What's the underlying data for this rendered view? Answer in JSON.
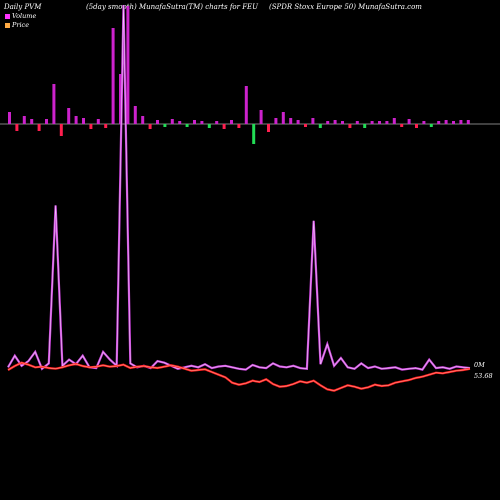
{
  "header": {
    "left": "Daily PVM",
    "center": "(5day smooth) MunafaSutra(TM) charts for FEU",
    "right": "(SPDR Stoxx Europe   50) MunafaSutra.com"
  },
  "legend": [
    {
      "label": "Volume",
      "color": "#ff33ff"
    },
    {
      "label": "Price",
      "color": "#ffaa44"
    }
  ],
  "colors": {
    "up": "#cc22cc",
    "down": "#ff1f4f",
    "green": "#22dd55",
    "volume_line": "#cc44dd",
    "price_line": "#ff2020",
    "axis": "#aaaaaa"
  },
  "chart_data": {
    "type": "line",
    "x": [
      1,
      2,
      3,
      4,
      5,
      6,
      7,
      8,
      9,
      10,
      11,
      12,
      13,
      14,
      15,
      16,
      17,
      18,
      19,
      20,
      21,
      22,
      23,
      24,
      25,
      26,
      27,
      28,
      29,
      30,
      31,
      32,
      33,
      34,
      35,
      36,
      37,
      38,
      39,
      40,
      41,
      42,
      43,
      44,
      45,
      46,
      47,
      48,
      49,
      50,
      51,
      52,
      53,
      54,
      55,
      56,
      57,
      58,
      59,
      60,
      61,
      62,
      63,
      64,
      65,
      66,
      67,
      68,
      69
    ],
    "series": [
      {
        "name": "Volume",
        "values": [
          10,
          25,
          12,
          18,
          30,
          8,
          15,
          220,
          12,
          20,
          14,
          25,
          10,
          9,
          30,
          20,
          12,
          480,
          15,
          10,
          12,
          9,
          18,
          16,
          12,
          8,
          10,
          12,
          10,
          14,
          9,
          11,
          12,
          10,
          8,
          7,
          13,
          10,
          9,
          15,
          11,
          10,
          12,
          9,
          8,
          200,
          14,
          40,
          12,
          22,
          10,
          8,
          15,
          9,
          11,
          8,
          9,
          10,
          7,
          8,
          9,
          7,
          20,
          9,
          10,
          8,
          11,
          10,
          9
        ]
      },
      {
        "name": "Price",
        "values": [
          53.5,
          54.1,
          54.6,
          54.3,
          53.9,
          54.0,
          53.8,
          53.7,
          53.9,
          54.2,
          54.4,
          54.1,
          53.9,
          54.0,
          54.2,
          54.0,
          54.1,
          54.3,
          53.8,
          54.0,
          54.1,
          53.9,
          53.8,
          54.0,
          54.2,
          54.0,
          53.7,
          53.4,
          53.5,
          53.6,
          53.2,
          52.8,
          52.4,
          51.6,
          51.3,
          51.5,
          51.9,
          51.7,
          52.1,
          51.4,
          51.0,
          51.1,
          51.4,
          51.8,
          51.6,
          51.9,
          51.2,
          50.6,
          50.4,
          50.8,
          51.2,
          51.0,
          50.7,
          50.9,
          51.3,
          51.1,
          51.2,
          51.6,
          51.8,
          52.0,
          52.3,
          52.5,
          52.8,
          53.1,
          53.0,
          53.2,
          53.4,
          53.5,
          53.68
        ]
      }
    ],
    "volume_bars": [
      {
        "value": 12,
        "dir": "up"
      },
      {
        "value": 7,
        "dir": "down"
      },
      {
        "value": 8,
        "dir": "up"
      },
      {
        "value": 5,
        "dir": "up"
      },
      {
        "value": 7,
        "dir": "down"
      },
      {
        "value": 5,
        "dir": "up"
      },
      {
        "value": 40,
        "dir": "up"
      },
      {
        "value": 12,
        "dir": "down"
      },
      {
        "value": 16,
        "dir": "up"
      },
      {
        "value": 8,
        "dir": "up"
      },
      {
        "value": 6,
        "dir": "up"
      },
      {
        "value": 5,
        "dir": "down"
      },
      {
        "value": 5,
        "dir": "up"
      },
      {
        "value": 4,
        "dir": "down"
      },
      {
        "value": 96,
        "dir": "up"
      },
      {
        "value": 50,
        "dir": "up"
      },
      {
        "value": 118,
        "dir": "up"
      },
      {
        "value": 18,
        "dir": "up"
      },
      {
        "value": 8,
        "dir": "up"
      },
      {
        "value": 5,
        "dir": "down"
      },
      {
        "value": 4,
        "dir": "up"
      },
      {
        "value": 3,
        "dir": "down"
      },
      {
        "value": 5,
        "dir": "up"
      },
      {
        "value": 3,
        "dir": "up"
      },
      {
        "value": 3,
        "dir": "down"
      },
      {
        "value": 4,
        "dir": "up"
      },
      {
        "value": 3,
        "dir": "up"
      },
      {
        "value": 4,
        "dir": "down"
      },
      {
        "value": 3,
        "dir": "up"
      },
      {
        "value": 5,
        "dir": "down"
      },
      {
        "value": 4,
        "dir": "up"
      },
      {
        "value": 4,
        "dir": "down"
      },
      {
        "value": 38,
        "dir": "up"
      },
      {
        "value": 20,
        "dir": "down"
      },
      {
        "value": 14,
        "dir": "up"
      },
      {
        "value": 8,
        "dir": "down"
      },
      {
        "value": 6,
        "dir": "up"
      },
      {
        "value": 12,
        "dir": "up"
      },
      {
        "value": 6,
        "dir": "up"
      },
      {
        "value": 4,
        "dir": "up"
      },
      {
        "value": 3,
        "dir": "down"
      },
      {
        "value": 6,
        "dir": "up"
      },
      {
        "value": 4,
        "dir": "down"
      },
      {
        "value": 3,
        "dir": "up"
      },
      {
        "value": 4,
        "dir": "up"
      },
      {
        "value": 3,
        "dir": "up"
      },
      {
        "value": 4,
        "dir": "down"
      },
      {
        "value": 3,
        "dir": "up"
      },
      {
        "value": 4,
        "dir": "down"
      },
      {
        "value": 3,
        "dir": "up"
      },
      {
        "value": 3,
        "dir": "up"
      },
      {
        "value": 3,
        "dir": "up"
      },
      {
        "value": 6,
        "dir": "up"
      },
      {
        "value": 3,
        "dir": "down"
      },
      {
        "value": 5,
        "dir": "up"
      },
      {
        "value": 4,
        "dir": "down"
      },
      {
        "value": 3,
        "dir": "up"
      },
      {
        "value": 3,
        "dir": "down"
      },
      {
        "value": 3,
        "dir": "up"
      },
      {
        "value": 4,
        "dir": "up"
      },
      {
        "value": 3,
        "dir": "up"
      },
      {
        "value": 4,
        "dir": "up"
      },
      {
        "value": 4,
        "dir": "up"
      }
    ],
    "last_volume_label": "0M",
    "last_price_label": "53.68",
    "ylim_price": [
      49,
      58
    ]
  }
}
